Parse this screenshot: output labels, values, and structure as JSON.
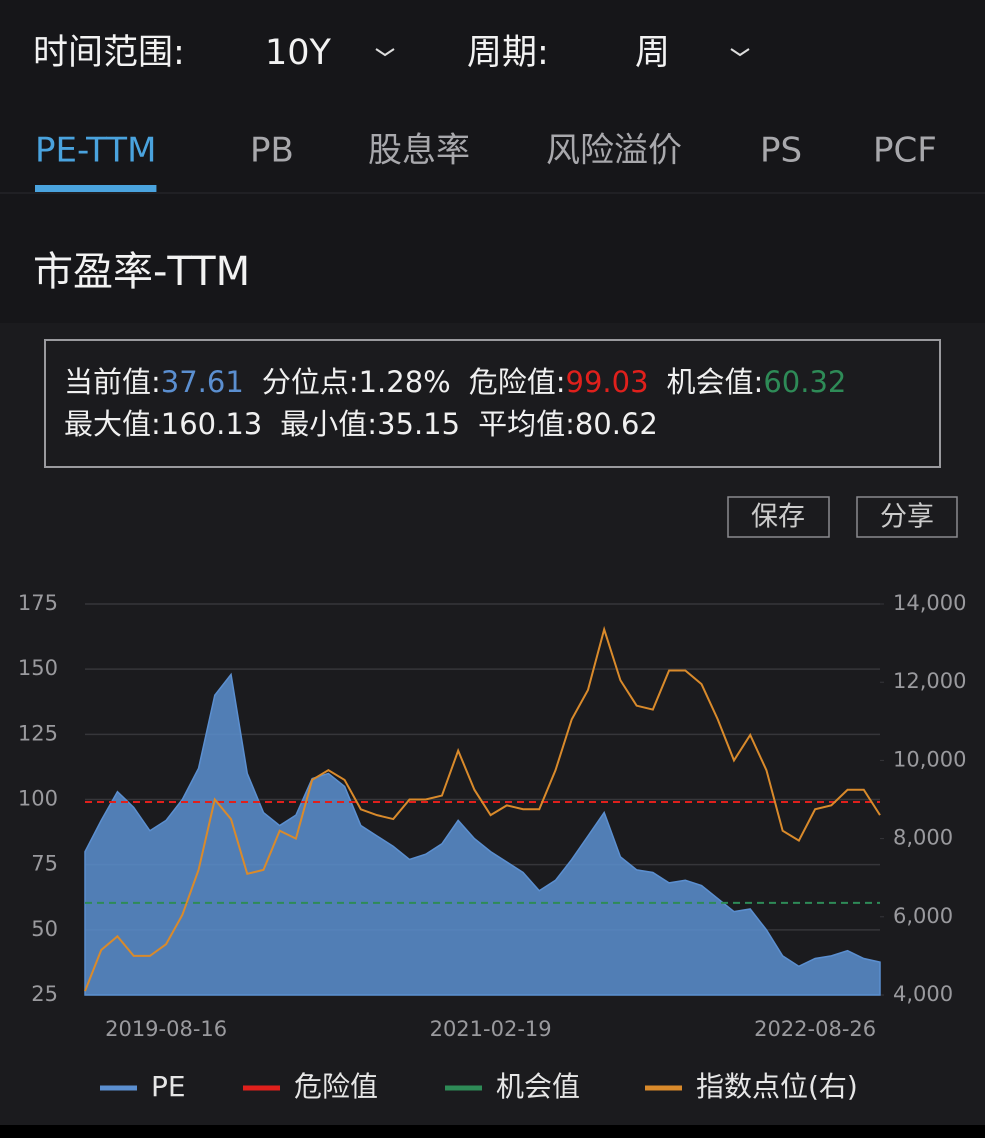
{
  "header": {
    "time_range_label": "时间范围:",
    "time_range": "10Y",
    "period_label": "周期:",
    "period": "周"
  },
  "tabs": [
    "PE-TTM",
    "PB",
    "股息率",
    "风险溢价",
    "PS",
    "PCF"
  ],
  "active_tab": 0,
  "section_title": "市盈率-TTM",
  "stats": [
    [
      {
        "label": "当前值:",
        "value": 37.61,
        "color": "#5b8fd0"
      },
      {
        "label": "分位点:",
        "value": 1.28,
        "value_label": "1.28%"
      },
      {
        "label": "危险值:",
        "value": 99.03,
        "color": "#e0201c"
      },
      {
        "label": "机会值:",
        "value": 60.32,
        "color": "#2e8b57"
      }
    ],
    [
      {
        "label": "最大值:",
        "value": 160.13
      },
      {
        "label": "最小值:",
        "value": 35.15
      },
      {
        "label": "平均值:",
        "value": 80.62
      }
    ]
  ],
  "buttons": [
    "保存",
    "分享"
  ],
  "chart_data": {
    "type": "area",
    "categories": [
      null,
      null,
      null,
      null,
      null,
      "2019-08-16",
      null,
      null,
      null,
      null,
      null,
      null,
      null,
      null,
      null,
      null,
      null,
      null,
      null,
      null,
      null,
      null,
      null,
      null,
      null,
      "2021-02-19",
      null,
      null,
      null,
      null,
      null,
      null,
      null,
      null,
      null,
      null,
      null,
      null,
      null,
      null,
      null,
      null,
      null,
      null,
      null,
      "2022-08-26",
      null,
      null,
      null,
      null
    ],
    "ylim": [
      25,
      175
    ],
    "yticks": [
      25,
      50,
      75,
      100,
      125,
      150,
      175
    ],
    "y2lim": [
      4000,
      14000
    ],
    "y2ticks": [
      {
        "value": 4000,
        "label": "4,000"
      },
      {
        "value": 6000,
        "label": "6,000"
      },
      {
        "value": 8000,
        "label": "8,000"
      },
      {
        "value": 10000,
        "label": "10,000"
      },
      {
        "value": 12000,
        "label": "12,000"
      },
      {
        "value": 14000,
        "label": "14,000"
      }
    ],
    "grid": true,
    "series": [
      {
        "name": "PE",
        "type": "area",
        "color": "#5b8fd0",
        "values": [
          80,
          92,
          103,
          97,
          88,
          92,
          100,
          112,
          140,
          148,
          110,
          95,
          90,
          94,
          108,
          110,
          105,
          90,
          86,
          82,
          77,
          79,
          83,
          92,
          85,
          80,
          76,
          72,
          65,
          69,
          77,
          86,
          95,
          78,
          73,
          72,
          68,
          69,
          67,
          62,
          57,
          58,
          50,
          40,
          36,
          39,
          40,
          42,
          39,
          37.61
        ]
      },
      {
        "name": "危险值",
        "type": "hline",
        "color": "#e0201c",
        "value": 99.03
      },
      {
        "name": "机会值",
        "type": "hline",
        "color": "#2e8b57",
        "value": 60.32
      },
      {
        "name": "指数点位(右)",
        "type": "line",
        "axis": "y2",
        "color": "#d98a2b",
        "values": [
          4100,
          5150,
          5500,
          5000,
          5000,
          5300,
          6050,
          7200,
          9000,
          8500,
          7100,
          7200,
          8200,
          8000,
          9500,
          9750,
          9500,
          8750,
          8600,
          8500,
          9000,
          9000,
          9100,
          10250,
          9250,
          8600,
          8850,
          8750,
          8750,
          9750,
          11050,
          11800,
          13350,
          12050,
          11400,
          11300,
          12300,
          12300,
          11950,
          11050,
          10000,
          10650,
          9750,
          8200,
          7950,
          8750,
          8850,
          9250,
          9250,
          8600
        ]
      }
    ]
  }
}
